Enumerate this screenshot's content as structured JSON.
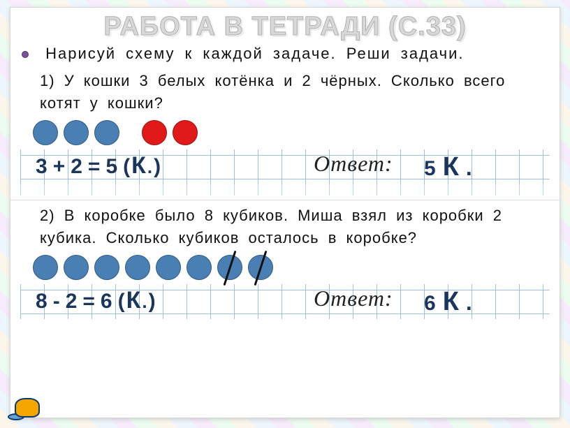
{
  "title": "РАБОТА В ТЕТРАДИ (С.33)",
  "instruction": "Нарисуй схему к каждой задаче. Реши задачи.",
  "colors": {
    "circle_blue": "#4a7fb3",
    "circle_red": "#e01a1a",
    "text_navy": "#1b365d",
    "grid_line": "#9fbfe0"
  },
  "problems": [
    {
      "number": "1)",
      "text": "У кошки 3 белых котёнка и 2 чёрных. Сколько всего котят у кошки?",
      "schema": {
        "groups": [
          {
            "count": 3,
            "color": "blue",
            "crossed": false
          },
          {
            "count": 2,
            "color": "red",
            "crossed": false
          }
        ],
        "gap_after_group": 0
      },
      "equation": {
        "a": "3",
        "op": "+",
        "b": "2",
        "eq": "=",
        "result": "5",
        "unit_open": "(",
        "unit_k": "К",
        "unit_dot": ".",
        "unit_close": ")"
      },
      "answer_label": "Ответ:",
      "answer": {
        "value": "5",
        "unit_k": "К",
        "unit_dot": "."
      }
    },
    {
      "number": "2)",
      "text": "В коробке было 8 кубиков. Миша взял из коробки 2 кубика. Сколько кубиков осталось в коробке?",
      "schema": {
        "groups": [
          {
            "count": 6,
            "color": "blue",
            "crossed": false
          },
          {
            "count": 2,
            "color": "blue",
            "crossed": true
          }
        ],
        "gap_after_group": -1
      },
      "equation": {
        "a": "8",
        "op": "-",
        "b": "2",
        "eq": "=",
        "result": "6",
        "unit_open": "(",
        "unit_k": "К",
        "unit_dot": ".",
        "unit_close": ")"
      },
      "answer_label": "Ответ:",
      "answer": {
        "value": "6",
        "unit_k": "К",
        "unit_dot": "."
      }
    }
  ]
}
